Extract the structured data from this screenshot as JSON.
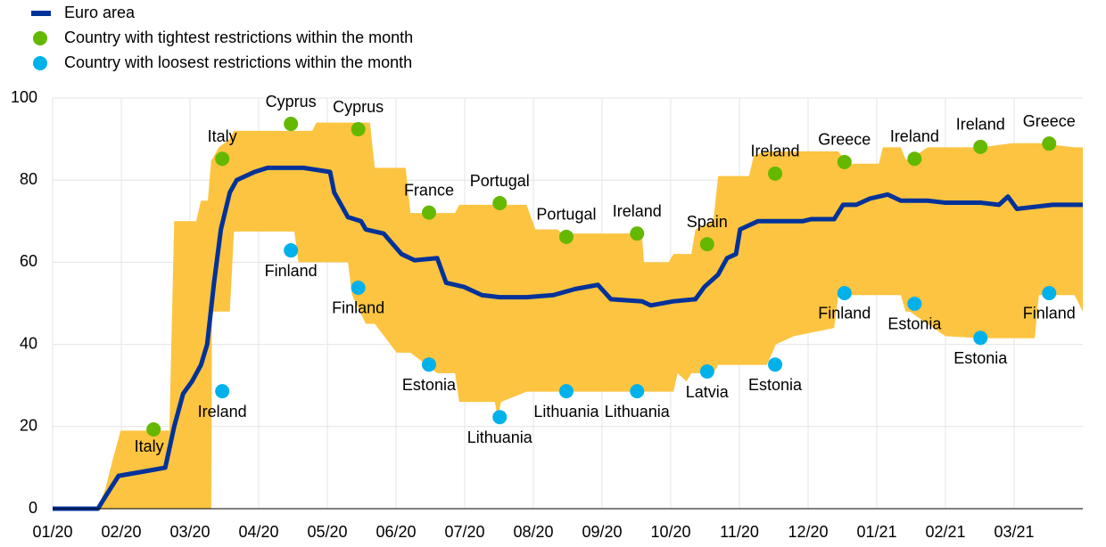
{
  "chart_data": {
    "type": "line",
    "xlim": [
      0,
      15
    ],
    "xticks": [
      {
        "value": 0,
        "label": "01/20"
      },
      {
        "value": 1,
        "label": "02/20"
      },
      {
        "value": 2,
        "label": "03/20"
      },
      {
        "value": 3,
        "label": "04/20"
      },
      {
        "value": 4,
        "label": "05/20"
      },
      {
        "value": 5,
        "label": "06/20"
      },
      {
        "value": 6,
        "label": "07/20"
      },
      {
        "value": 7,
        "label": "08/20"
      },
      {
        "value": 8,
        "label": "09/20"
      },
      {
        "value": 9,
        "label": "10/20"
      },
      {
        "value": 10,
        "label": "11/20"
      },
      {
        "value": 11,
        "label": "12/20"
      },
      {
        "value": 12,
        "label": "01/21"
      },
      {
        "value": 13,
        "label": "02/21"
      },
      {
        "value": 14,
        "label": "03/21"
      }
    ],
    "ylim": [
      0,
      100
    ],
    "yticks": [
      0,
      20,
      40,
      60,
      80,
      100
    ],
    "grid": true,
    "range": {
      "color": "#fcc440",
      "x": [
        0,
        0.66,
        0.77,
        0.86,
        0.99,
        1.7,
        1.77,
        2.09,
        2.16,
        2.26,
        2.31,
        2.32,
        2.42,
        2.58,
        2.64,
        3.52,
        3.58,
        3.78,
        3.84,
        4.3,
        4.36,
        4.56,
        4.62,
        4.69,
        5.01,
        5.14,
        5.21,
        5.6,
        5.86,
        5.92,
        6.44,
        6.48,
        6.53,
        6.9,
        7.03,
        7.35,
        7.42,
        8.58,
        8.61,
        8.97,
        9.04,
        9.1,
        9.23,
        9.3,
        9.36,
        9.62,
        9.69,
        10.14,
        10.21,
        10.4,
        10.53,
        10.79,
        11.38,
        11.44,
        11.57,
        12.03,
        12.09,
        12.35,
        12.42,
        12.48,
        12.74,
        13.0,
        13.52,
        13.97,
        14.3,
        14.36,
        14.88,
        15
      ],
      "upper": [
        0,
        0,
        5,
        11,
        19,
        19,
        70,
        70,
        75,
        75,
        85,
        85,
        88,
        90,
        92,
        92,
        92,
        92,
        94,
        94,
        94,
        94,
        94,
        83,
        83,
        83,
        72,
        72,
        72,
        74,
        74,
        74,
        74,
        74,
        68,
        68,
        67,
        67,
        60,
        60,
        62,
        62,
        62,
        62,
        68,
        70,
        81,
        81,
        86,
        87,
        87,
        87,
        87,
        87,
        84,
        84,
        88,
        88,
        85,
        85,
        88,
        88,
        88,
        89,
        89,
        89,
        88,
        88
      ],
      "lower": [
        0,
        0,
        0,
        0,
        0,
        0,
        0,
        0,
        0,
        0,
        0,
        48,
        48,
        48,
        67.5,
        67.5,
        60,
        60,
        60,
        60,
        52,
        45,
        45,
        45,
        38,
        38,
        38,
        33,
        33,
        26,
        26,
        22,
        26,
        28.5,
        28.5,
        28.5,
        28.5,
        28.5,
        28.5,
        28.5,
        28.5,
        33,
        31,
        33,
        33,
        33,
        35,
        35,
        35,
        35,
        40,
        42,
        44,
        52,
        52,
        52,
        52,
        52,
        48,
        48,
        45,
        42,
        41.5,
        41.5,
        41.5,
        52,
        52,
        48
      ]
    },
    "series": [
      {
        "name": "Euro area",
        "color": "#003299",
        "x": [
          0,
          0.66,
          0.77,
          0.96,
          1.31,
          1.64,
          1.77,
          1.9,
          2.03,
          2.16,
          2.25,
          2.35,
          2.45,
          2.58,
          2.68,
          2.94,
          3.13,
          3.65,
          4.04,
          4.1,
          4.3,
          4.49,
          4.56,
          4.82,
          5.08,
          5.27,
          5.6,
          5.73,
          5.99,
          6.25,
          6.51,
          6.9,
          7.29,
          7.61,
          7.94,
          8.13,
          8.58,
          8.71,
          9.04,
          9.36,
          9.49,
          9.69,
          9.82,
          9.95,
          10.01,
          10.14,
          10.27,
          10.92,
          11.05,
          11.38,
          11.51,
          11.7,
          11.9,
          12.16,
          12.35,
          12.74,
          13.0,
          13.52,
          13.78,
          13.91,
          14.04,
          14.56,
          15
        ],
        "values": [
          0,
          0,
          3,
          8,
          9,
          10,
          20,
          28,
          31,
          35,
          40,
          55,
          68,
          77,
          80,
          82,
          83,
          83,
          82,
          77,
          71,
          70,
          68,
          67,
          62,
          60.5,
          61,
          55,
          54,
          52,
          51.5,
          51.5,
          52,
          53.5,
          54.5,
          51,
          50.5,
          49.5,
          50.5,
          51,
          54,
          57,
          61,
          62,
          68,
          69,
          70,
          70,
          70.5,
          70.5,
          74,
          74,
          75.5,
          76.5,
          75,
          75,
          74.5,
          74.5,
          74,
          76,
          73,
          74,
          74
        ]
      },
      {
        "name": "Country with tightest restrictions within the month",
        "color": "#65b800",
        "x": [
          1.47,
          2.47,
          3.47,
          4.45,
          5.48,
          6.51,
          7.48,
          8.51,
          9.53,
          10.52,
          11.53,
          12.55,
          13.51,
          14.51
        ],
        "values": [
          19.3,
          85.2,
          93.7,
          92.4,
          72.1,
          74.4,
          66.2,
          67.0,
          64.4,
          81.6,
          84.4,
          85.2,
          88.1,
          88.9
        ],
        "labels": [
          "Italy",
          "Italy",
          "Cyprus",
          "Cyprus",
          "France",
          "Portugal",
          "Portugal",
          "Ireland",
          "Spain",
          "Ireland",
          "Greece",
          "Ireland",
          "Ireland",
          "Greece"
        ]
      },
      {
        "name": "Country with loosest restrictions within the month",
        "color": "#00b1ea",
        "x": [
          2.47,
          3.47,
          4.45,
          5.48,
          6.51,
          7.48,
          8.51,
          9.53,
          10.52,
          11.53,
          12.55,
          13.51,
          14.51
        ],
        "values": [
          28.6,
          62.9,
          53.8,
          35.1,
          22.3,
          28.6,
          28.6,
          33.4,
          35.1,
          52.5,
          49.9,
          41.6,
          52.5
        ],
        "labels": [
          "Ireland",
          "Finland",
          "Finland",
          "Estonia",
          "Lithuania",
          "Lithuania",
          "Lithuania",
          "Latvia",
          "Estonia",
          "Finland",
          "Estonia",
          "Estonia",
          "Finland"
        ]
      }
    ]
  }
}
